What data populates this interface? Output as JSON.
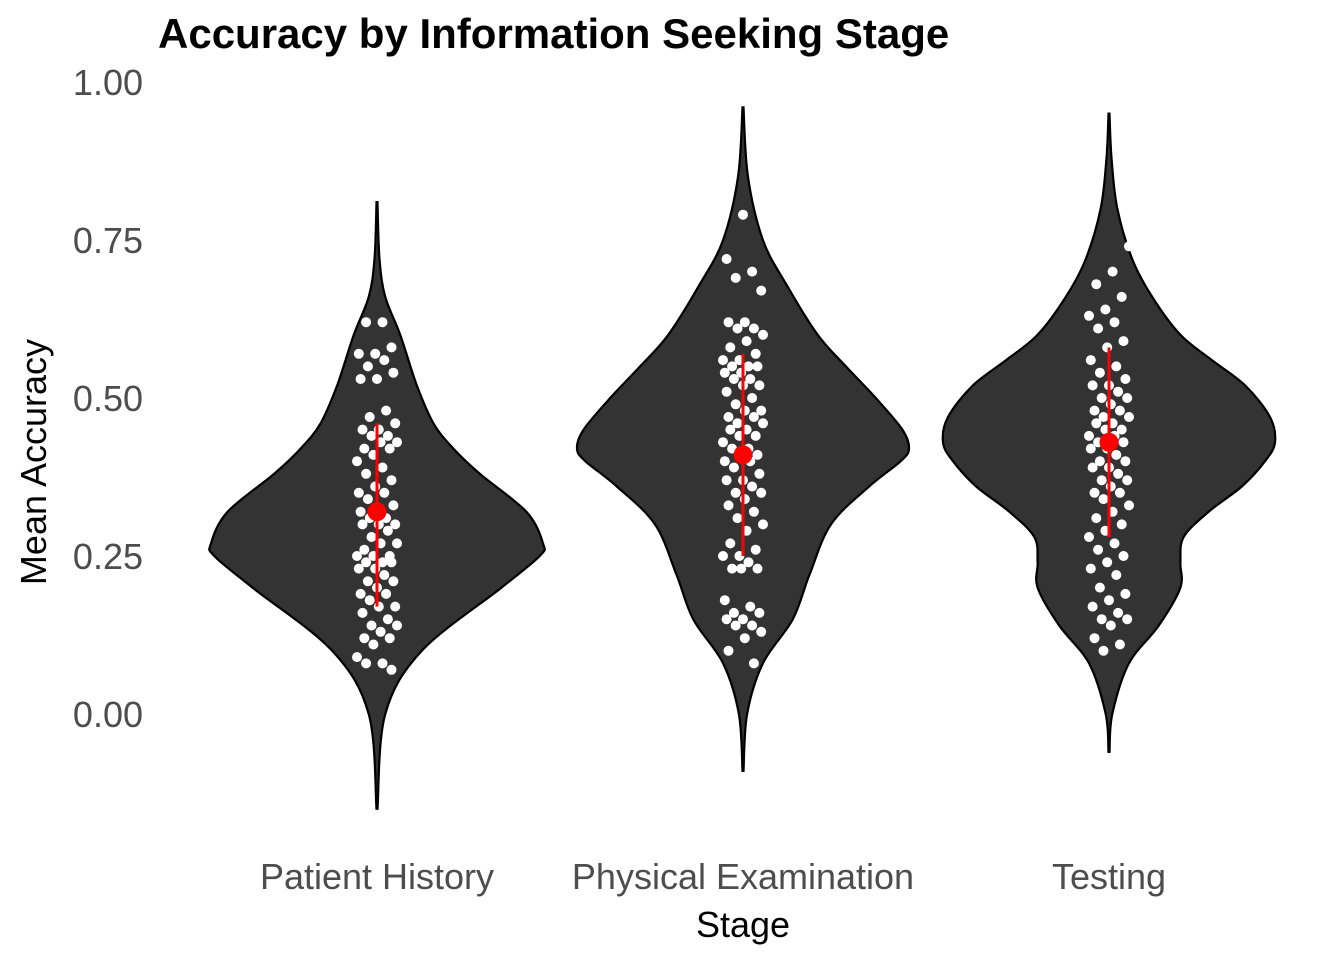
{
  "chart_data": {
    "type": "violin",
    "title": "Accuracy by Information Seeking Stage",
    "xlabel": "Stage",
    "ylabel": "Mean Accuracy",
    "ylim": [
      -0.16,
      1.0
    ],
    "yticks": [
      "0.00",
      "0.25",
      "0.50",
      "0.75",
      "1.00"
    ],
    "categories": [
      "Patient History",
      "Physical Examination",
      "Testing"
    ],
    "violin_fill": "#333333",
    "point_color": "#ffffff",
    "summary_color": "#ff0000",
    "grid": false,
    "groups": [
      {
        "category": "Patient History",
        "mean": 0.32,
        "interval": [
          0.17,
          0.46
        ],
        "range": [
          -0.15,
          0.81
        ],
        "density": [
          [
            -0.15,
            0.003
          ],
          [
            0.0,
            0.05
          ],
          [
            0.1,
            0.27
          ],
          [
            0.2,
            0.75
          ],
          [
            0.25,
            0.98
          ],
          [
            0.27,
            1.0
          ],
          [
            0.32,
            0.9
          ],
          [
            0.38,
            0.62
          ],
          [
            0.42,
            0.46
          ],
          [
            0.46,
            0.34
          ],
          [
            0.52,
            0.24
          ],
          [
            0.6,
            0.14
          ],
          [
            0.66,
            0.05
          ],
          [
            0.72,
            0.015
          ],
          [
            0.81,
            0.003
          ]
        ],
        "points": [
          0.65,
          0.62,
          0.62,
          0.58,
          0.57,
          0.57,
          0.56,
          0.55,
          0.54,
          0.53,
          0.53,
          0.48,
          0.47,
          0.46,
          0.45,
          0.45,
          0.44,
          0.44,
          0.43,
          0.43,
          0.42,
          0.42,
          0.41,
          0.4,
          0.39,
          0.38,
          0.37,
          0.36,
          0.35,
          0.35,
          0.34,
          0.33,
          0.32,
          0.32,
          0.31,
          0.31,
          0.3,
          0.3,
          0.3,
          0.29,
          0.28,
          0.27,
          0.27,
          0.26,
          0.25,
          0.25,
          0.25,
          0.24,
          0.24,
          0.24,
          0.23,
          0.23,
          0.22,
          0.21,
          0.21,
          0.2,
          0.19,
          0.19,
          0.18,
          0.17,
          0.17,
          0.16,
          0.15,
          0.14,
          0.14,
          0.13,
          0.12,
          0.12,
          0.11,
          0.09,
          0.08,
          0.08,
          0.07
        ]
      },
      {
        "category": "Physical Examination",
        "mean": 0.41,
        "interval": [
          0.25,
          0.57
        ],
        "range": [
          -0.09,
          0.96
        ],
        "density": [
          [
            -0.09,
            0.003
          ],
          [
            0.0,
            0.025
          ],
          [
            0.08,
            0.12
          ],
          [
            0.15,
            0.3
          ],
          [
            0.22,
            0.4
          ],
          [
            0.3,
            0.53
          ],
          [
            0.36,
            0.76
          ],
          [
            0.4,
            0.95
          ],
          [
            0.42,
            1.0
          ],
          [
            0.45,
            0.96
          ],
          [
            0.5,
            0.8
          ],
          [
            0.55,
            0.62
          ],
          [
            0.6,
            0.45
          ],
          [
            0.68,
            0.26
          ],
          [
            0.75,
            0.12
          ],
          [
            0.85,
            0.03
          ],
          [
            0.96,
            0.003
          ]
        ],
        "points": [
          0.79,
          0.72,
          0.7,
          0.69,
          0.67,
          0.62,
          0.62,
          0.61,
          0.61,
          0.6,
          0.59,
          0.58,
          0.57,
          0.56,
          0.56,
          0.55,
          0.55,
          0.55,
          0.54,
          0.54,
          0.53,
          0.53,
          0.52,
          0.52,
          0.51,
          0.5,
          0.49,
          0.48,
          0.48,
          0.47,
          0.47,
          0.46,
          0.46,
          0.45,
          0.45,
          0.44,
          0.44,
          0.43,
          0.42,
          0.42,
          0.41,
          0.41,
          0.4,
          0.4,
          0.39,
          0.38,
          0.37,
          0.37,
          0.36,
          0.35,
          0.35,
          0.34,
          0.33,
          0.32,
          0.31,
          0.3,
          0.29,
          0.27,
          0.26,
          0.25,
          0.25,
          0.24,
          0.23,
          0.23,
          0.23,
          0.18,
          0.17,
          0.16,
          0.16,
          0.15,
          0.15,
          0.14,
          0.14,
          0.13,
          0.12,
          0.1,
          0.08
        ]
      },
      {
        "category": "Testing",
        "mean": 0.43,
        "interval": [
          0.28,
          0.58
        ],
        "range": [
          -0.06,
          0.95
        ],
        "density": [
          [
            -0.06,
            0.003
          ],
          [
            0.0,
            0.02
          ],
          [
            0.08,
            0.12
          ],
          [
            0.14,
            0.3
          ],
          [
            0.2,
            0.43
          ],
          [
            0.24,
            0.43
          ],
          [
            0.28,
            0.45
          ],
          [
            0.32,
            0.6
          ],
          [
            0.36,
            0.8
          ],
          [
            0.4,
            0.94
          ],
          [
            0.43,
            1.0
          ],
          [
            0.47,
            0.97
          ],
          [
            0.52,
            0.82
          ],
          [
            0.56,
            0.62
          ],
          [
            0.6,
            0.43
          ],
          [
            0.66,
            0.26
          ],
          [
            0.72,
            0.14
          ],
          [
            0.8,
            0.05
          ],
          [
            0.88,
            0.015
          ],
          [
            0.95,
            0.003
          ]
        ],
        "points": [
          0.74,
          0.7,
          0.68,
          0.66,
          0.64,
          0.63,
          0.62,
          0.61,
          0.59,
          0.58,
          0.56,
          0.55,
          0.54,
          0.53,
          0.52,
          0.52,
          0.51,
          0.5,
          0.5,
          0.49,
          0.48,
          0.48,
          0.47,
          0.47,
          0.46,
          0.46,
          0.45,
          0.45,
          0.44,
          0.44,
          0.43,
          0.43,
          0.42,
          0.42,
          0.41,
          0.4,
          0.4,
          0.39,
          0.39,
          0.38,
          0.37,
          0.37,
          0.36,
          0.35,
          0.35,
          0.34,
          0.33,
          0.32,
          0.31,
          0.3,
          0.29,
          0.28,
          0.27,
          0.26,
          0.25,
          0.24,
          0.23,
          0.22,
          0.2,
          0.19,
          0.18,
          0.17,
          0.16,
          0.15,
          0.15,
          0.14,
          0.12,
          0.11,
          0.1
        ]
      }
    ]
  }
}
